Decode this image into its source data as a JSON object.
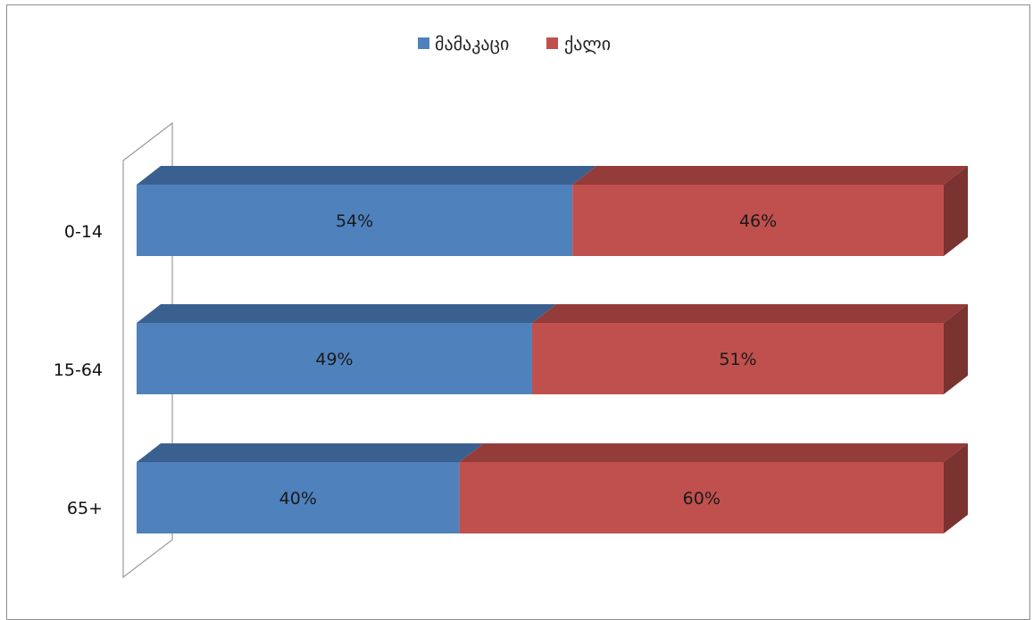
{
  "chart_data": {
    "type": "bar",
    "orientation": "horizontal",
    "stacked": "100%",
    "three_d": true,
    "categories": [
      "0-14",
      "15-64",
      "65+"
    ],
    "series": [
      {
        "name": "მამაკაცი",
        "values": [
          54,
          49,
          40
        ],
        "labels": [
          "54%",
          "49%",
          "40%"
        ],
        "color": "#4f81bd"
      },
      {
        "name": "ქალი",
        "values": [
          46,
          51,
          60
        ],
        "labels": [
          "46%",
          "51%",
          "60%"
        ],
        "color": "#c0504d"
      }
    ],
    "xlim": [
      0,
      100
    ],
    "grid": false,
    "legend_position": "top"
  }
}
